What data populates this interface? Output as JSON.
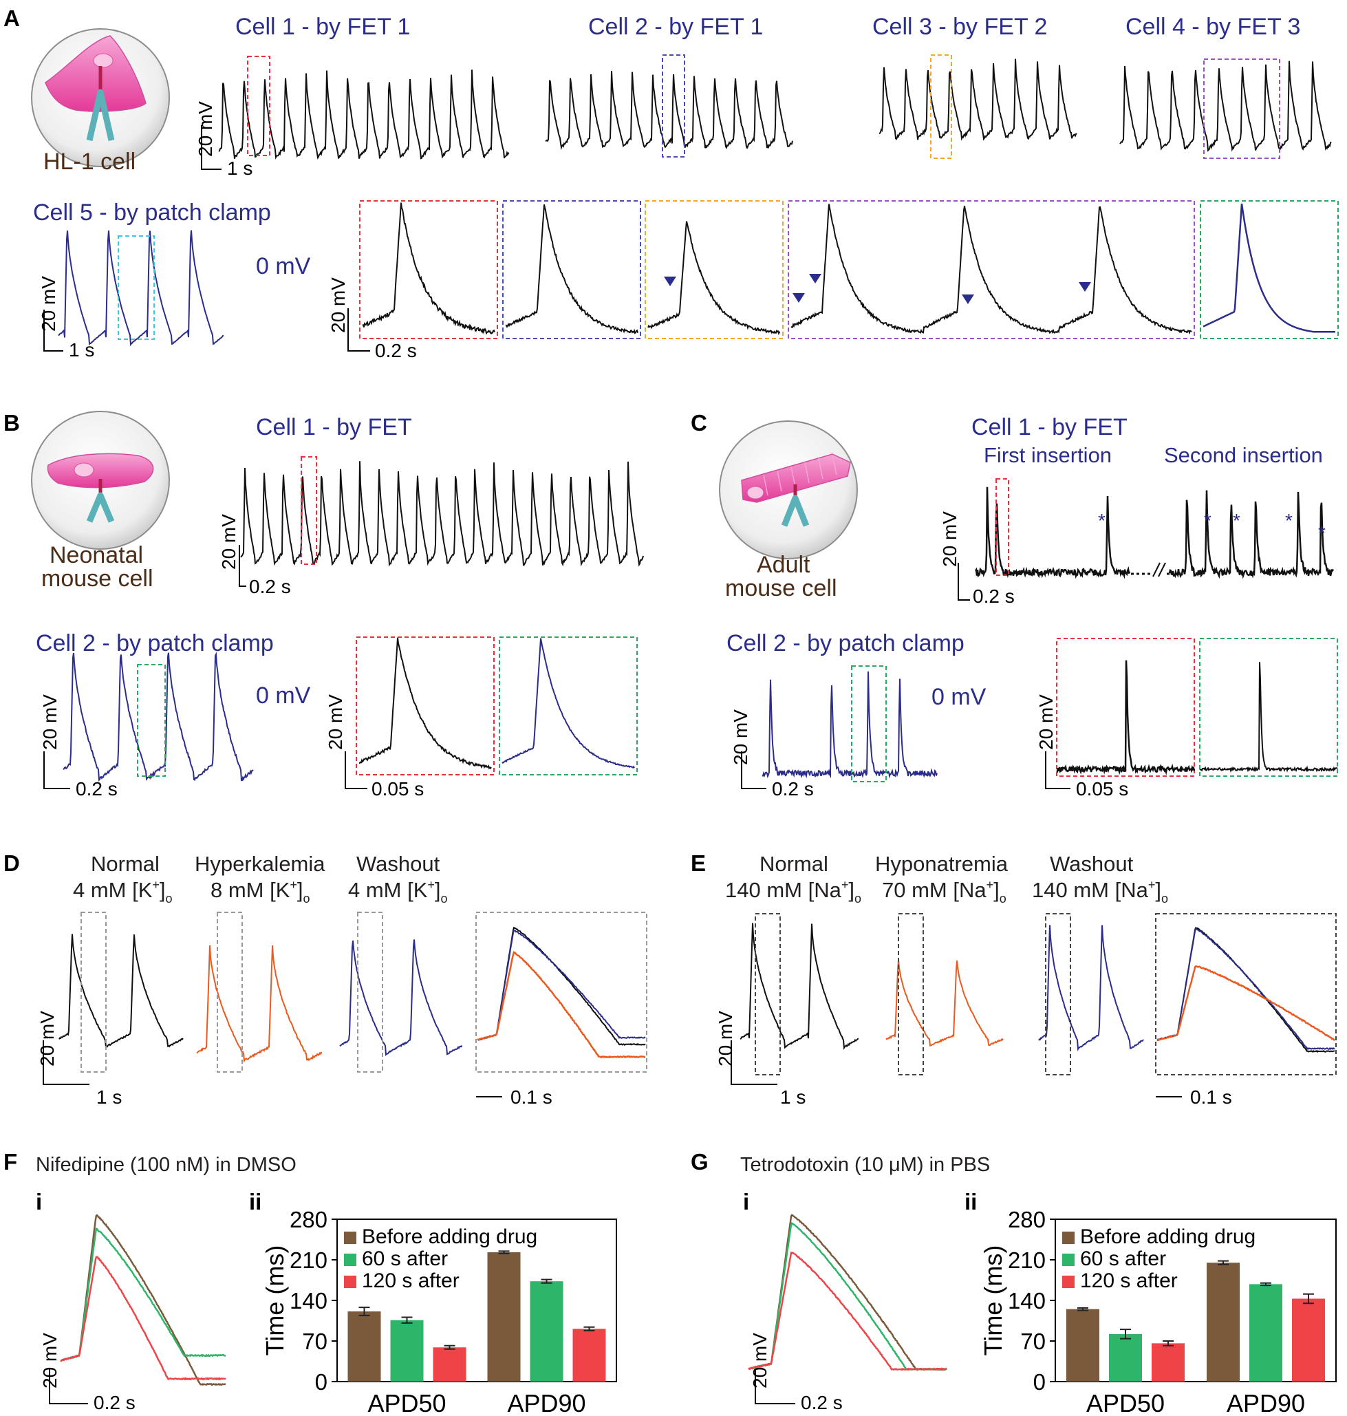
{
  "colors": {
    "title_blue": "#2b2d8c",
    "trace_black": "#111111",
    "trace_blue": "#2b2d8c",
    "trace_orange": "#ea5a1e",
    "before": "#7b5a3c",
    "after60": "#2db56a",
    "after120": "#ee4448",
    "box_red": "#e8303a",
    "box_blue": "#4a4ab0",
    "box_orange": "#f5a623",
    "box_purple": "#9b4fc4",
    "box_cyan": "#3cc8e0",
    "box_green": "#2aa860",
    "box_gray": "#999999",
    "cell_pink": "#ee5fb0",
    "probe": "#5ab1b8"
  },
  "panel_a": {
    "label": "A",
    "schematic_caption": "HL-1 cell",
    "titles": [
      "Cell 1 - by FET 1",
      "Cell 2 - by FET 1",
      "Cell 3 - by FET 2",
      "Cell 4 - by FET 3"
    ],
    "patch_title": "Cell 5 - by patch clamp",
    "zero_label": "0 mV",
    "scale_v": "20 mV",
    "scale_t": "1 s",
    "scale_t_zoom": "0.2 s"
  },
  "panel_b": {
    "label": "B",
    "schematic_caption": [
      "Neonatal",
      "mouse cell"
    ],
    "fet_title": "Cell 1 - by FET",
    "patch_title": "Cell 2 - by patch clamp",
    "zero_label": "0 mV",
    "scale_v": "20 mV",
    "scale_t": "0.2 s",
    "scale_t_zoom": "0.05 s"
  },
  "panel_c": {
    "label": "C",
    "schematic_caption": [
      "Adult",
      "mouse cell"
    ],
    "fet_title": "Cell 1 - by FET",
    "first": "First insertion",
    "second": "Second insertion",
    "star": "*",
    "patch_title": "Cell 2 - by patch clamp",
    "zero_label": "0 mV",
    "scale_v": "20 mV",
    "scale_t": "0.2 s",
    "scale_t_zoom": "0.05 s"
  },
  "panel_d": {
    "label": "D",
    "conditions": [
      {
        "name": "Normal",
        "conc": "4 mM [K",
        "ion": "+",
        "sub": "o"
      },
      {
        "name": "Hyperkalemia",
        "conc": "8 mM [K",
        "ion": "+",
        "sub": "o"
      },
      {
        "name": "Washout",
        "conc": "4 mM [K",
        "ion": "+",
        "sub": "o"
      }
    ],
    "scale_v": "20 mV",
    "scale_t": "1 s",
    "scale_t_zoom": "0.1 s"
  },
  "panel_e": {
    "label": "E",
    "conditions": [
      {
        "name": "Normal",
        "conc": "140 mM [Na",
        "ion": "+",
        "sub": "o"
      },
      {
        "name": "Hyponatremia",
        "conc": "70 mM [Na",
        "ion": "+",
        "sub": "o"
      },
      {
        "name": "Washout",
        "conc": "140 mM [Na",
        "ion": "+",
        "sub": "o"
      }
    ],
    "scale_v": "20 mV",
    "scale_t": "1 s",
    "scale_t_zoom": "0.1 s"
  },
  "panel_f": {
    "label": "F",
    "title": "Nifedipine (100 nM) in DMSO",
    "sub_i": "i",
    "sub_ii": "ii",
    "scale_v": "20 mV",
    "scale_t": "0.2 s"
  },
  "panel_g": {
    "label": "G",
    "title": "Tetrodotoxin (10 μM) in PBS",
    "sub_i": "i",
    "sub_ii": "ii",
    "scale_v": "20 mV",
    "scale_t": "0.2 s"
  },
  "chart_data": [
    {
      "type": "bar",
      "title": "Nifedipine (100 nM) in DMSO",
      "ylabel": "Time (ms)",
      "xlabel": "",
      "ylim": [
        0,
        280
      ],
      "yticks": [
        0,
        70,
        140,
        210,
        280
      ],
      "categories": [
        "APD50",
        "APD90"
      ],
      "series": [
        {
          "name": "Before adding drug",
          "values": [
            121,
            223
          ],
          "errors": [
            7,
            2
          ]
        },
        {
          "name": "60 s after",
          "values": [
            106,
            173
          ],
          "errors": [
            5,
            3
          ]
        },
        {
          "name": "120 s after",
          "values": [
            59,
            91
          ],
          "errors": [
            3,
            3
          ]
        }
      ],
      "legend_position": "top-left"
    },
    {
      "type": "bar",
      "title": "Tetrodotoxin (10 μM) in PBS",
      "ylabel": "Time (ms)",
      "xlabel": "",
      "ylim": [
        0,
        280
      ],
      "yticks": [
        0,
        70,
        140,
        210,
        280
      ],
      "categories": [
        "APD50",
        "APD90"
      ],
      "series": [
        {
          "name": "Before adding drug",
          "values": [
            125,
            205
          ],
          "errors": [
            2,
            3
          ]
        },
        {
          "name": "60 s after",
          "values": [
            82,
            168
          ],
          "errors": [
            8,
            2
          ]
        },
        {
          "name": "120 s after",
          "values": [
            66,
            143
          ],
          "errors": [
            4,
            8
          ]
        }
      ],
      "legend_position": "top-left"
    }
  ]
}
